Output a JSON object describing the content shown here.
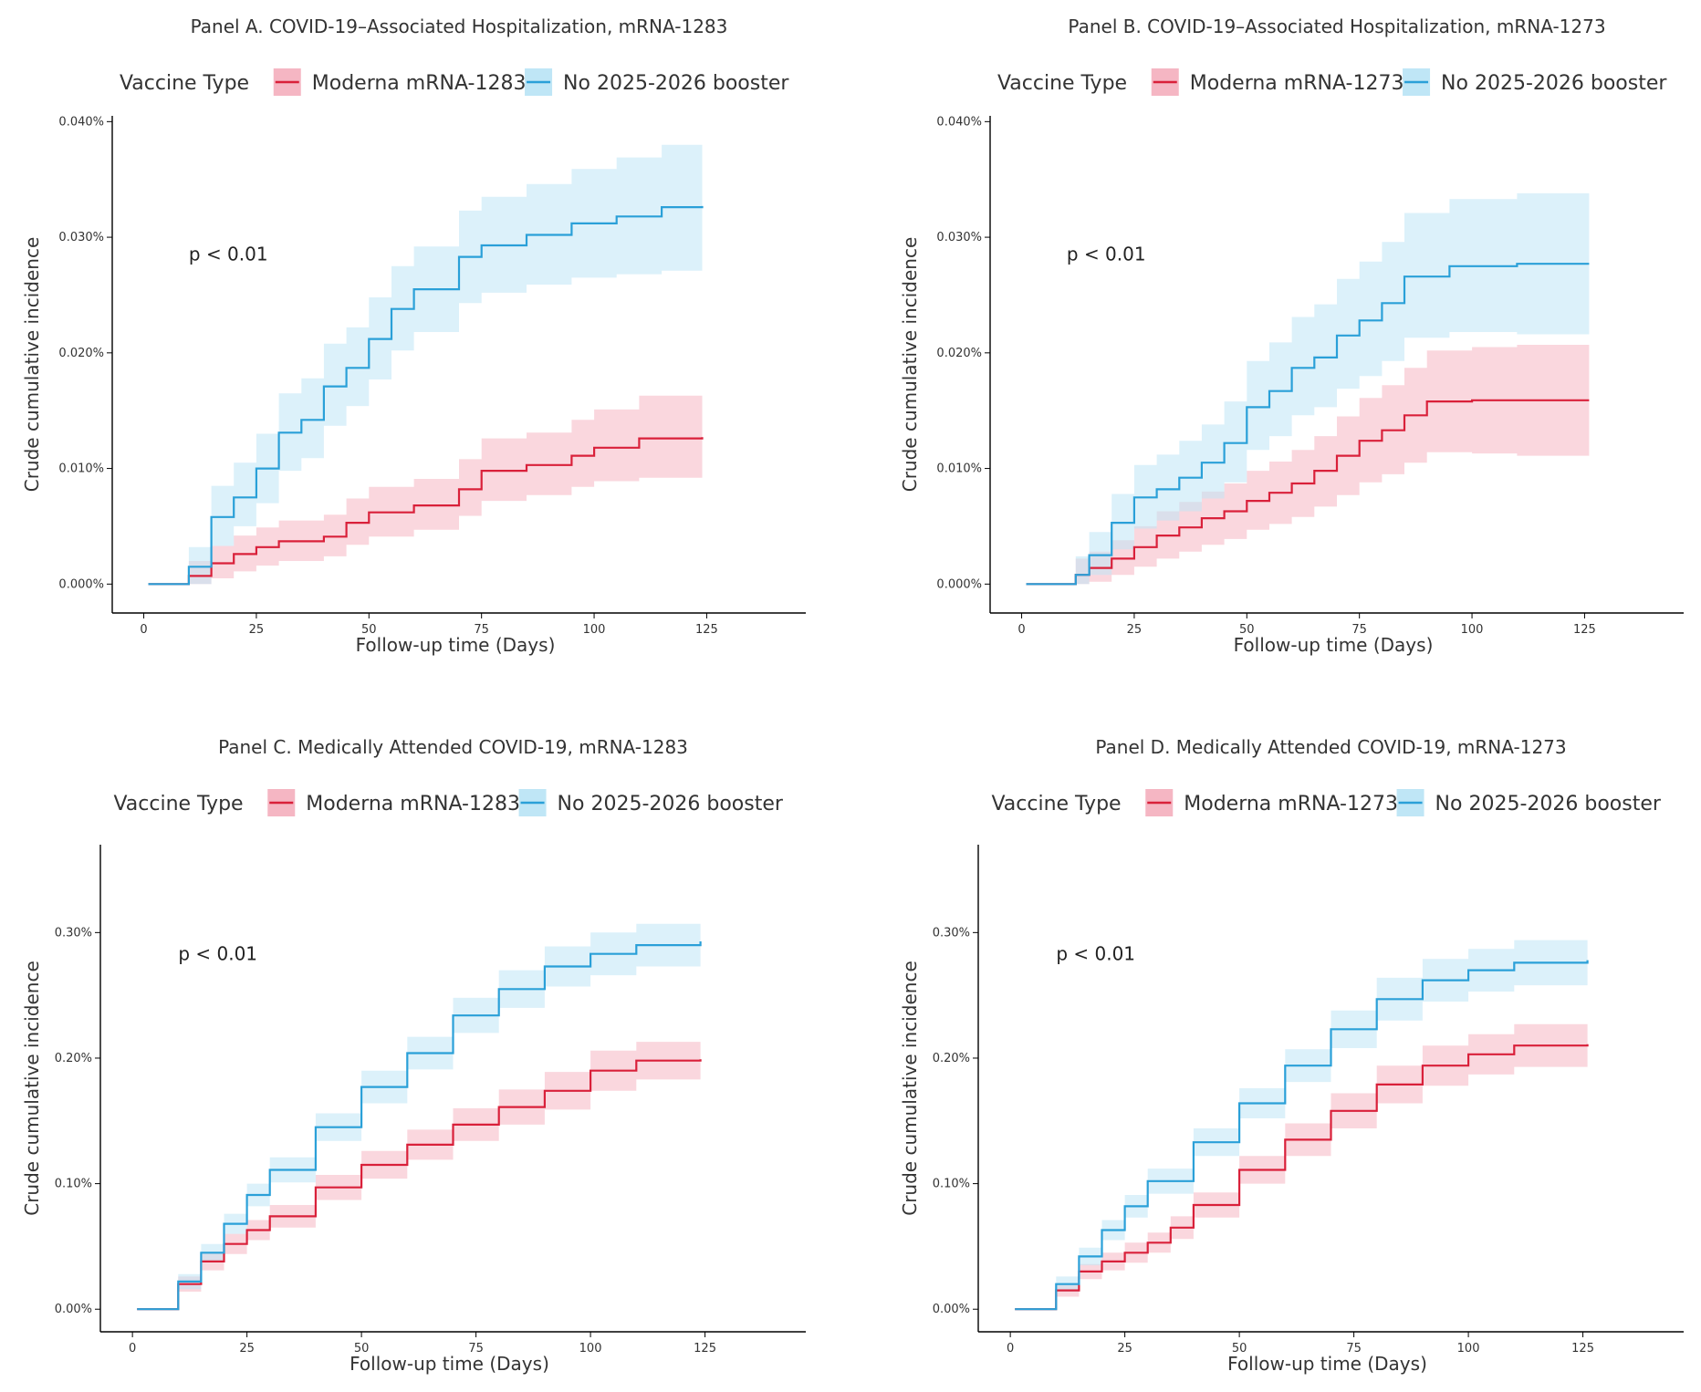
{
  "legend_title": "Vaccine Type",
  "x_axis_title": "Follow-up time (Days)",
  "y_axis_title": "Crude cumulative incidence",
  "colors": {
    "vaccine": "#d9203a",
    "vaccine_band": "#f5b6c3",
    "none": "#2aa0d8",
    "none_band": "#bfe6f6"
  },
  "chart_data": [
    {
      "type": "line",
      "title": "Panel A. COVID-19–Associated Hospitalization, mRNA-1283",
      "xlabel": "Follow-up time (Days)",
      "ylabel": "Crude cumulative incidence",
      "xlim": [
        -7,
        147
      ],
      "ylim": [
        -0.0025,
        0.0405
      ],
      "x_ticks": [
        0,
        25,
        50,
        75,
        100,
        125
      ],
      "y_ticks": [
        0,
        0.01,
        0.02,
        0.03,
        0.04
      ],
      "y_tick_labels": [
        "0.000%",
        "0.010%",
        "0.020%",
        "0.030%",
        "0.040%"
      ],
      "annotation": "p < 0.01",
      "annotation_at": [
        10,
        0.028
      ],
      "series": [
        {
          "name": "Moderna mRNA-1283",
          "x": [
            1,
            8,
            10,
            15,
            20,
            25,
            30,
            40,
            45,
            50,
            60,
            70,
            75,
            85,
            95,
            100,
            110,
            124
          ],
          "y": [
            0,
            0,
            0.0007,
            0.0018,
            0.0026,
            0.0032,
            0.0037,
            0.0041,
            0.0053,
            0.0062,
            0.0068,
            0.0082,
            0.0098,
            0.0103,
            0.0111,
            0.0118,
            0.0126,
            0.0127
          ],
          "lower": [
            0,
            0,
            0,
            0.0005,
            0.0011,
            0.0016,
            0.002,
            0.0024,
            0.0034,
            0.0041,
            0.0047,
            0.0059,
            0.0072,
            0.0077,
            0.0084,
            0.0089,
            0.0092,
            0.0091
          ],
          "upper": [
            0,
            0,
            0.002,
            0.0033,
            0.0042,
            0.0049,
            0.0055,
            0.006,
            0.0074,
            0.0084,
            0.0091,
            0.0108,
            0.0126,
            0.0131,
            0.0142,
            0.0151,
            0.0163,
            0.0164
          ]
        },
        {
          "name": "No 2025-2026 booster",
          "x": [
            1,
            8,
            10,
            15,
            20,
            25,
            30,
            35,
            40,
            45,
            50,
            55,
            60,
            70,
            75,
            85,
            95,
            105,
            115,
            124
          ],
          "y": [
            0,
            0,
            0.0015,
            0.0058,
            0.0075,
            0.01,
            0.0131,
            0.0142,
            0.0171,
            0.0187,
            0.0212,
            0.0238,
            0.0255,
            0.0283,
            0.0293,
            0.0302,
            0.0312,
            0.0318,
            0.0326,
            0.0327
          ],
          "lower": [
            0,
            0,
            0,
            0.0033,
            0.005,
            0.007,
            0.0098,
            0.0109,
            0.0137,
            0.0154,
            0.0177,
            0.0202,
            0.0218,
            0.0243,
            0.0252,
            0.0259,
            0.0265,
            0.0268,
            0.0271,
            0.0269
          ],
          "upper": [
            0,
            0,
            0.0032,
            0.0085,
            0.0105,
            0.013,
            0.0165,
            0.0178,
            0.0208,
            0.0222,
            0.0248,
            0.0275,
            0.0292,
            0.0323,
            0.0335,
            0.0346,
            0.0359,
            0.0369,
            0.038,
            0.0386
          ]
        }
      ]
    },
    {
      "type": "line",
      "title": "Panel B. COVID-19–Associated Hospitalization, mRNA-1273",
      "xlabel": "Follow-up time (Days)",
      "ylabel": "Crude cumulative incidence",
      "xlim": [
        -7,
        147
      ],
      "ylim": [
        -0.0025,
        0.0405
      ],
      "x_ticks": [
        0,
        25,
        50,
        75,
        100,
        125
      ],
      "y_ticks": [
        0,
        0.01,
        0.02,
        0.03,
        0.04
      ],
      "y_tick_labels": [
        "0.000%",
        "0.010%",
        "0.020%",
        "0.030%",
        "0.040%"
      ],
      "annotation": "p < 0.01",
      "annotation_at": [
        10,
        0.028
      ],
      "series": [
        {
          "name": "Moderna mRNA-1273",
          "x": [
            1,
            8,
            12,
            15,
            20,
            25,
            30,
            35,
            40,
            45,
            50,
            55,
            60,
            65,
            70,
            75,
            80,
            85,
            90,
            100,
            110,
            126
          ],
          "y": [
            0,
            0,
            0.0008,
            0.0014,
            0.0022,
            0.0032,
            0.0042,
            0.0049,
            0.0057,
            0.0063,
            0.0072,
            0.0079,
            0.0087,
            0.0098,
            0.0111,
            0.0124,
            0.0133,
            0.0146,
            0.0158,
            0.0159,
            0.0159,
            0.0159
          ],
          "lower": [
            0,
            0,
            0,
            0.0002,
            0.0008,
            0.0015,
            0.0022,
            0.0028,
            0.0034,
            0.0039,
            0.0047,
            0.0052,
            0.0058,
            0.0067,
            0.0077,
            0.0088,
            0.0095,
            0.0105,
            0.0114,
            0.0113,
            0.0111,
            0.0109
          ],
          "upper": [
            0,
            0,
            0.0022,
            0.0028,
            0.0038,
            0.005,
            0.0063,
            0.0071,
            0.008,
            0.0087,
            0.0098,
            0.0106,
            0.0116,
            0.0128,
            0.0145,
            0.0161,
            0.0172,
            0.0187,
            0.0202,
            0.0205,
            0.0207,
            0.0209
          ]
        },
        {
          "name": "No 2025-2026 booster",
          "x": [
            1,
            8,
            12,
            15,
            20,
            25,
            30,
            35,
            40,
            45,
            50,
            55,
            60,
            65,
            70,
            75,
            80,
            85,
            95,
            110,
            126
          ],
          "y": [
            0,
            0,
            0.0008,
            0.0025,
            0.0053,
            0.0075,
            0.0082,
            0.0092,
            0.0105,
            0.0122,
            0.0153,
            0.0167,
            0.0187,
            0.0196,
            0.0215,
            0.0228,
            0.0243,
            0.0266,
            0.0275,
            0.0277,
            0.0277
          ],
          "lower": [
            0,
            0,
            0,
            0.0008,
            0.003,
            0.0048,
            0.0055,
            0.0063,
            0.0074,
            0.0088,
            0.0116,
            0.0128,
            0.0146,
            0.0153,
            0.0169,
            0.018,
            0.0193,
            0.0213,
            0.0218,
            0.0216,
            0.0213
          ],
          "upper": [
            0,
            0,
            0.0024,
            0.0045,
            0.0078,
            0.0103,
            0.0112,
            0.0124,
            0.0138,
            0.0158,
            0.0193,
            0.0209,
            0.0231,
            0.0242,
            0.0264,
            0.0279,
            0.0296,
            0.0321,
            0.0333,
            0.0338,
            0.0342
          ]
        }
      ]
    },
    {
      "type": "line",
      "title": "Panel C. Medically Attended COVID-19, mRNA-1283",
      "xlabel": "Follow-up time (Days)",
      "ylabel": "Crude cumulative incidence",
      "xlim": [
        -7,
        147
      ],
      "ylim": [
        -0.00018,
        0.0037
      ],
      "x_ticks": [
        0,
        25,
        50,
        75,
        100,
        125
      ],
      "y_ticks": [
        0,
        0.001,
        0.002,
        0.003
      ],
      "y_tick_labels": [
        "0.00%",
        "0.10%",
        "0.20%",
        "0.30%"
      ],
      "annotation": "p < 0.01",
      "annotation_at": [
        10,
        0.00278
      ],
      "series": [
        {
          "name": "Moderna mRNA-1283",
          "x": [
            1,
            8,
            10,
            15,
            20,
            25,
            30,
            40,
            50,
            60,
            70,
            80,
            90,
            100,
            110,
            124
          ],
          "y": [
            0,
            0,
            0.0002,
            0.00038,
            0.00052,
            0.00063,
            0.00074,
            0.00097,
            0.00115,
            0.00131,
            0.00147,
            0.00161,
            0.00174,
            0.0019,
            0.00198,
            0.00199
          ],
          "lower": [
            0,
            0,
            0.00014,
            0.00031,
            0.00044,
            0.00055,
            0.00065,
            0.00087,
            0.00104,
            0.00119,
            0.00134,
            0.00147,
            0.00159,
            0.00174,
            0.00183,
            0.00184
          ],
          "upper": [
            0,
            0,
            0.00026,
            0.00045,
            0.0006,
            0.00071,
            0.00083,
            0.00107,
            0.00126,
            0.00143,
            0.0016,
            0.00175,
            0.00189,
            0.00206,
            0.00213,
            0.00214
          ]
        },
        {
          "name": "No 2025-2026 booster",
          "x": [
            1,
            8,
            10,
            15,
            20,
            25,
            30,
            40,
            50,
            60,
            70,
            80,
            90,
            100,
            110,
            124
          ],
          "y": [
            0,
            0,
            0.00022,
            0.00045,
            0.00068,
            0.00091,
            0.00111,
            0.00145,
            0.00177,
            0.00204,
            0.00234,
            0.00255,
            0.00273,
            0.00283,
            0.0029,
            0.00293
          ],
          "lower": [
            0,
            0,
            0.00016,
            0.00038,
            0.0006,
            0.00082,
            0.00101,
            0.00134,
            0.00164,
            0.00191,
            0.0022,
            0.0024,
            0.00257,
            0.00266,
            0.00273,
            0.00276
          ],
          "upper": [
            0,
            0,
            0.00028,
            0.00052,
            0.00076,
            0.001,
            0.00121,
            0.00156,
            0.0019,
            0.00217,
            0.00248,
            0.0027,
            0.00289,
            0.003,
            0.00307,
            0.0031
          ]
        }
      ]
    },
    {
      "type": "line",
      "title": "Panel D. Medically Attended COVID-19, mRNA-1273",
      "xlabel": "Follow-up time (Days)",
      "ylabel": "Crude cumulative incidence",
      "xlim": [
        -7,
        147
      ],
      "ylim": [
        -0.00018,
        0.0037
      ],
      "x_ticks": [
        0,
        25,
        50,
        75,
        100,
        125
      ],
      "y_ticks": [
        0,
        0.001,
        0.002,
        0.003
      ],
      "y_tick_labels": [
        "0.00%",
        "0.10%",
        "0.20%",
        "0.30%"
      ],
      "annotation": "p < 0.01",
      "annotation_at": [
        10,
        0.00278
      ],
      "series": [
        {
          "name": "Moderna mRNA-1273",
          "x": [
            1,
            8,
            10,
            15,
            20,
            25,
            30,
            35,
            40,
            50,
            60,
            70,
            80,
            90,
            100,
            110,
            126
          ],
          "y": [
            0,
            0,
            0.00015,
            0.0003,
            0.00038,
            0.00045,
            0.00053,
            0.00065,
            0.00083,
            0.00111,
            0.00135,
            0.00158,
            0.00179,
            0.00194,
            0.00203,
            0.0021,
            0.00211
          ],
          "lower": [
            0,
            0,
            0.0001,
            0.00024,
            0.00031,
            0.00037,
            0.00045,
            0.00056,
            0.00073,
            0.001,
            0.00122,
            0.00144,
            0.00164,
            0.00178,
            0.00187,
            0.00193,
            0.00193
          ],
          "upper": [
            0,
            0,
            0.0002,
            0.00036,
            0.00045,
            0.00053,
            0.00061,
            0.00074,
            0.00093,
            0.00122,
            0.00148,
            0.00172,
            0.00194,
            0.0021,
            0.00219,
            0.00227,
            0.00229
          ]
        },
        {
          "name": "No 2025-2026 booster",
          "x": [
            1,
            8,
            10,
            15,
            20,
            25,
            30,
            40,
            50,
            60,
            70,
            80,
            90,
            100,
            110,
            126
          ],
          "y": [
            0,
            0,
            0.0002,
            0.00042,
            0.00063,
            0.00082,
            0.00102,
            0.00133,
            0.00164,
            0.00194,
            0.00223,
            0.00247,
            0.00262,
            0.0027,
            0.00276,
            0.00278
          ],
          "lower": [
            0,
            0,
            0.00014,
            0.00035,
            0.00055,
            0.00073,
            0.00092,
            0.00122,
            0.00152,
            0.00181,
            0.00208,
            0.0023,
            0.00245,
            0.00253,
            0.00258,
            0.00259
          ],
          "upper": [
            0,
            0,
            0.00026,
            0.00049,
            0.00071,
            0.00091,
            0.00112,
            0.00144,
            0.00176,
            0.00207,
            0.00238,
            0.00264,
            0.00279,
            0.00287,
            0.00294,
            0.00297
          ]
        }
      ]
    }
  ]
}
